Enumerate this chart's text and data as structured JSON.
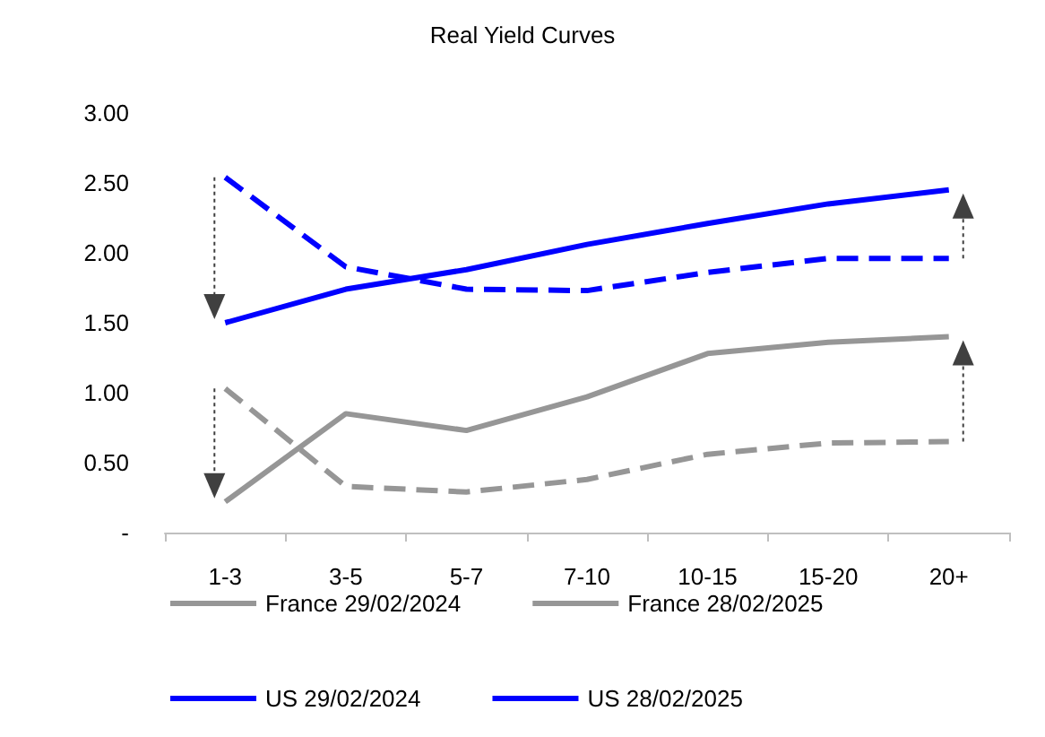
{
  "chart_data": {
    "type": "line",
    "title": "Real Yield Curves",
    "categories": [
      "1-3",
      "3-5",
      "5-7",
      "7-10",
      "10-15",
      "15-20",
      "20+"
    ],
    "series": [
      {
        "name": "France 29/02/2024",
        "color": "#969696",
        "line_style": "dashed",
        "values": [
          1.03,
          0.33,
          0.29,
          0.38,
          0.56,
          0.64,
          0.65
        ]
      },
      {
        "name": "France 28/02/2025",
        "color": "#969696",
        "line_style": "solid",
        "values": [
          0.22,
          0.85,
          0.73,
          0.97,
          1.28,
          1.36,
          1.4
        ]
      },
      {
        "name": "US 29/02/2024",
        "color": "#0000ff",
        "line_style": "dashed",
        "values": [
          2.54,
          1.9,
          1.74,
          1.73,
          1.86,
          1.96,
          1.96
        ]
      },
      {
        "name": "US 28/02/2025",
        "color": "#0000ff",
        "line_style": "solid",
        "values": [
          1.5,
          1.74,
          1.88,
          2.06,
          2.21,
          2.35,
          2.45
        ]
      }
    ],
    "ylim": [
      0,
      3
    ],
    "yticks": [
      {
        "value": 0,
        "label": "-"
      },
      {
        "value": 0.5,
        "label": "0.50"
      },
      {
        "value": 1,
        "label": "1.00"
      },
      {
        "value": 1.5,
        "label": "1.50"
      },
      {
        "value": 2,
        "label": "2.00"
      },
      {
        "value": 2.5,
        "label": "2.50"
      },
      {
        "value": 3,
        "label": "3.00"
      }
    ],
    "grid": false,
    "legend": "bottom",
    "marker": "none"
  }
}
